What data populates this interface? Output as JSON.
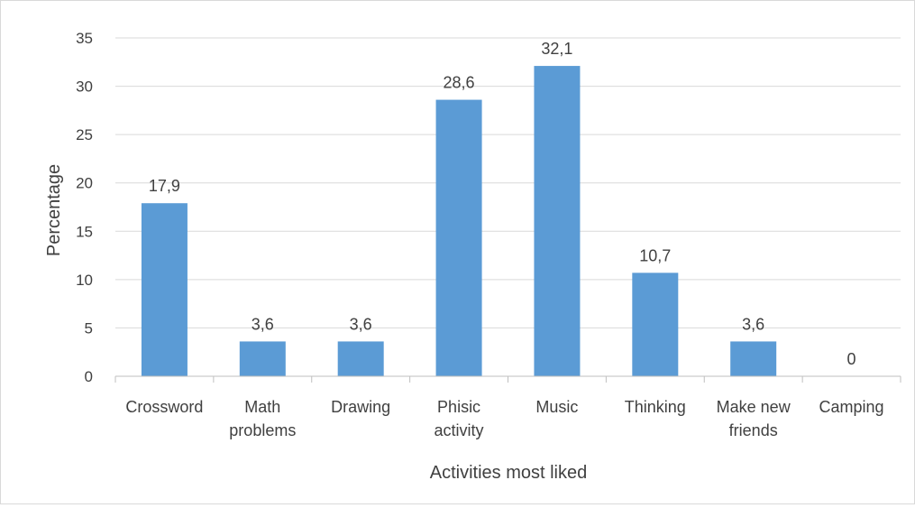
{
  "chart_data": {
    "type": "bar",
    "categories": [
      [
        "Crossword"
      ],
      [
        "Math",
        "problems"
      ],
      [
        "Drawing"
      ],
      [
        "Phisic",
        "activity"
      ],
      [
        "Music"
      ],
      [
        "Thinking"
      ],
      [
        "Make new",
        "friends"
      ],
      [
        "Camping"
      ]
    ],
    "values": [
      17.9,
      3.6,
      3.6,
      28.6,
      32.1,
      10.7,
      3.6,
      0
    ],
    "data_labels": [
      "17,9",
      "3,6",
      "3,6",
      "28,6",
      "32,1",
      "10,7",
      "3,6",
      "0"
    ],
    "xlabel": "Activities most liked",
    "ylabel": "Percentage",
    "ylim": [
      0,
      35
    ],
    "yticks": [
      0,
      5,
      10,
      15,
      20,
      25,
      30,
      35
    ],
    "grid": true,
    "legend": "none",
    "colors": {
      "bar": "#5b9bd5",
      "grid": "#d9d9d9",
      "text": "#404040",
      "axis": "#bfbfbf"
    }
  }
}
